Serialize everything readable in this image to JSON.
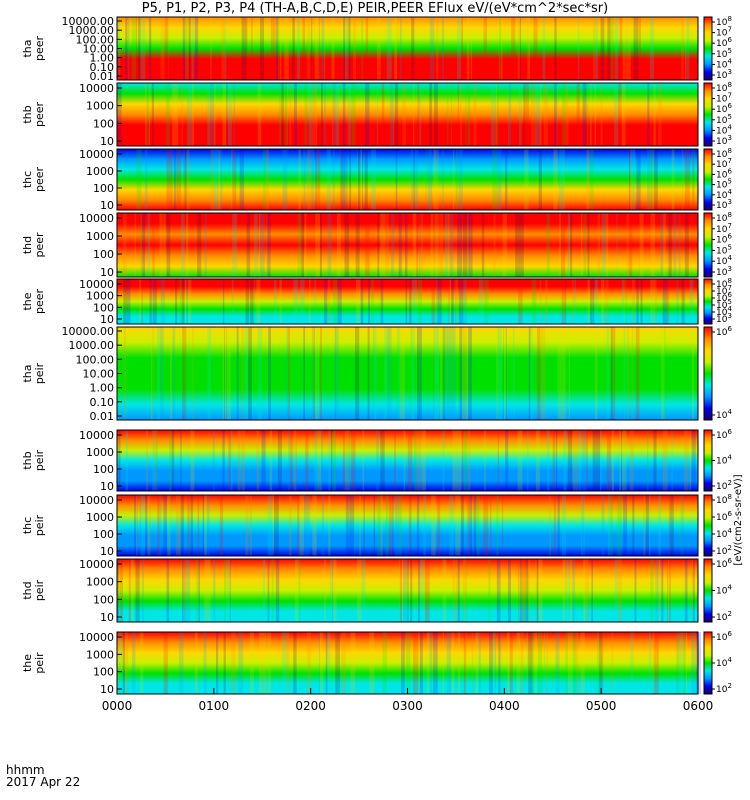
{
  "title": "P5, P1, P2, P3, P4 (TH-A,B,C,D,E) PEIR,PEER EFlux eV/(eV*cm^2*sec*sr)",
  "colorbar_label": "[eV/(cm2-s-sr-eV)]",
  "x_label_line1": "hhmm",
  "x_label_line2": "2017 Apr 22",
  "chart_data": {
    "type": "heatmap",
    "x_ticks": [
      "0000",
      "0100",
      "0200",
      "0300",
      "0400",
      "0500",
      "0600"
    ],
    "colormap": [
      "#1e0066",
      "#0000e6",
      "#0098ff",
      "#00e6e6",
      "#00e000",
      "#c8f000",
      "#ffd700",
      "#ff8c00",
      "#ff0000"
    ],
    "panels": [
      {
        "probe": "tha",
        "species": "peer",
        "y_ticks": [
          "10000.00",
          "1000.00",
          "100.00",
          "10.00",
          "1.00",
          "0.10",
          "0.01"
        ],
        "cbar_ticks": [
          "10^8",
          "10^7",
          "10^6",
          "10^5",
          "10^4",
          "10^3"
        ]
      },
      {
        "probe": "thb",
        "species": "peer",
        "y_ticks": [
          "10000",
          "1000",
          "100",
          "10"
        ],
        "cbar_ticks": [
          "10^8",
          "10^7",
          "10^6",
          "10^5",
          "10^4",
          "10^3"
        ]
      },
      {
        "probe": "thc",
        "species": "peer",
        "y_ticks": [
          "10000",
          "1000",
          "100",
          "10"
        ],
        "cbar_ticks": [
          "10^8",
          "10^7",
          "10^6",
          "10^5",
          "10^4",
          "10^3"
        ]
      },
      {
        "probe": "thd",
        "species": "peer",
        "y_ticks": [
          "10000",
          "1000",
          "100",
          "10"
        ],
        "cbar_ticks": [
          "10^8",
          "10^7",
          "10^6",
          "10^5",
          "10^4",
          "10^3"
        ]
      },
      {
        "probe": "the",
        "species": "peer",
        "y_ticks": [
          "10000",
          "1000",
          "100",
          "10"
        ],
        "cbar_ticks": [
          "10^8",
          "10^7",
          "10^6",
          "10^5",
          "10^4",
          "10^3"
        ]
      },
      {
        "probe": "tha",
        "species": "peir",
        "y_ticks": [
          "10000.00",
          "1000.00",
          "100.00",
          "10.00",
          "1.00",
          "0.10",
          "0.01"
        ],
        "cbar_ticks": [
          "10^6",
          "10^4"
        ]
      },
      {
        "probe": "thb",
        "species": "peir",
        "y_ticks": [
          "10000",
          "1000",
          "100",
          "10"
        ],
        "cbar_ticks": [
          "10^6",
          "10^4",
          "10^2"
        ]
      },
      {
        "probe": "thc",
        "species": "peir",
        "y_ticks": [
          "10000",
          "1000",
          "100",
          "10"
        ],
        "cbar_ticks": [
          "10^8",
          "10^6",
          "10^4",
          "10^2"
        ]
      },
      {
        "probe": "thd",
        "species": "peir",
        "y_ticks": [
          "10000",
          "1000",
          "100",
          "10"
        ],
        "cbar_ticks": [
          "10^6",
          "10^4",
          "10^2"
        ]
      },
      {
        "probe": "the",
        "species": "peir",
        "y_ticks": [
          "10000",
          "1000",
          "100",
          "10"
        ],
        "cbar_ticks": [
          "10^6",
          "10^4",
          "10^2"
        ]
      }
    ]
  }
}
